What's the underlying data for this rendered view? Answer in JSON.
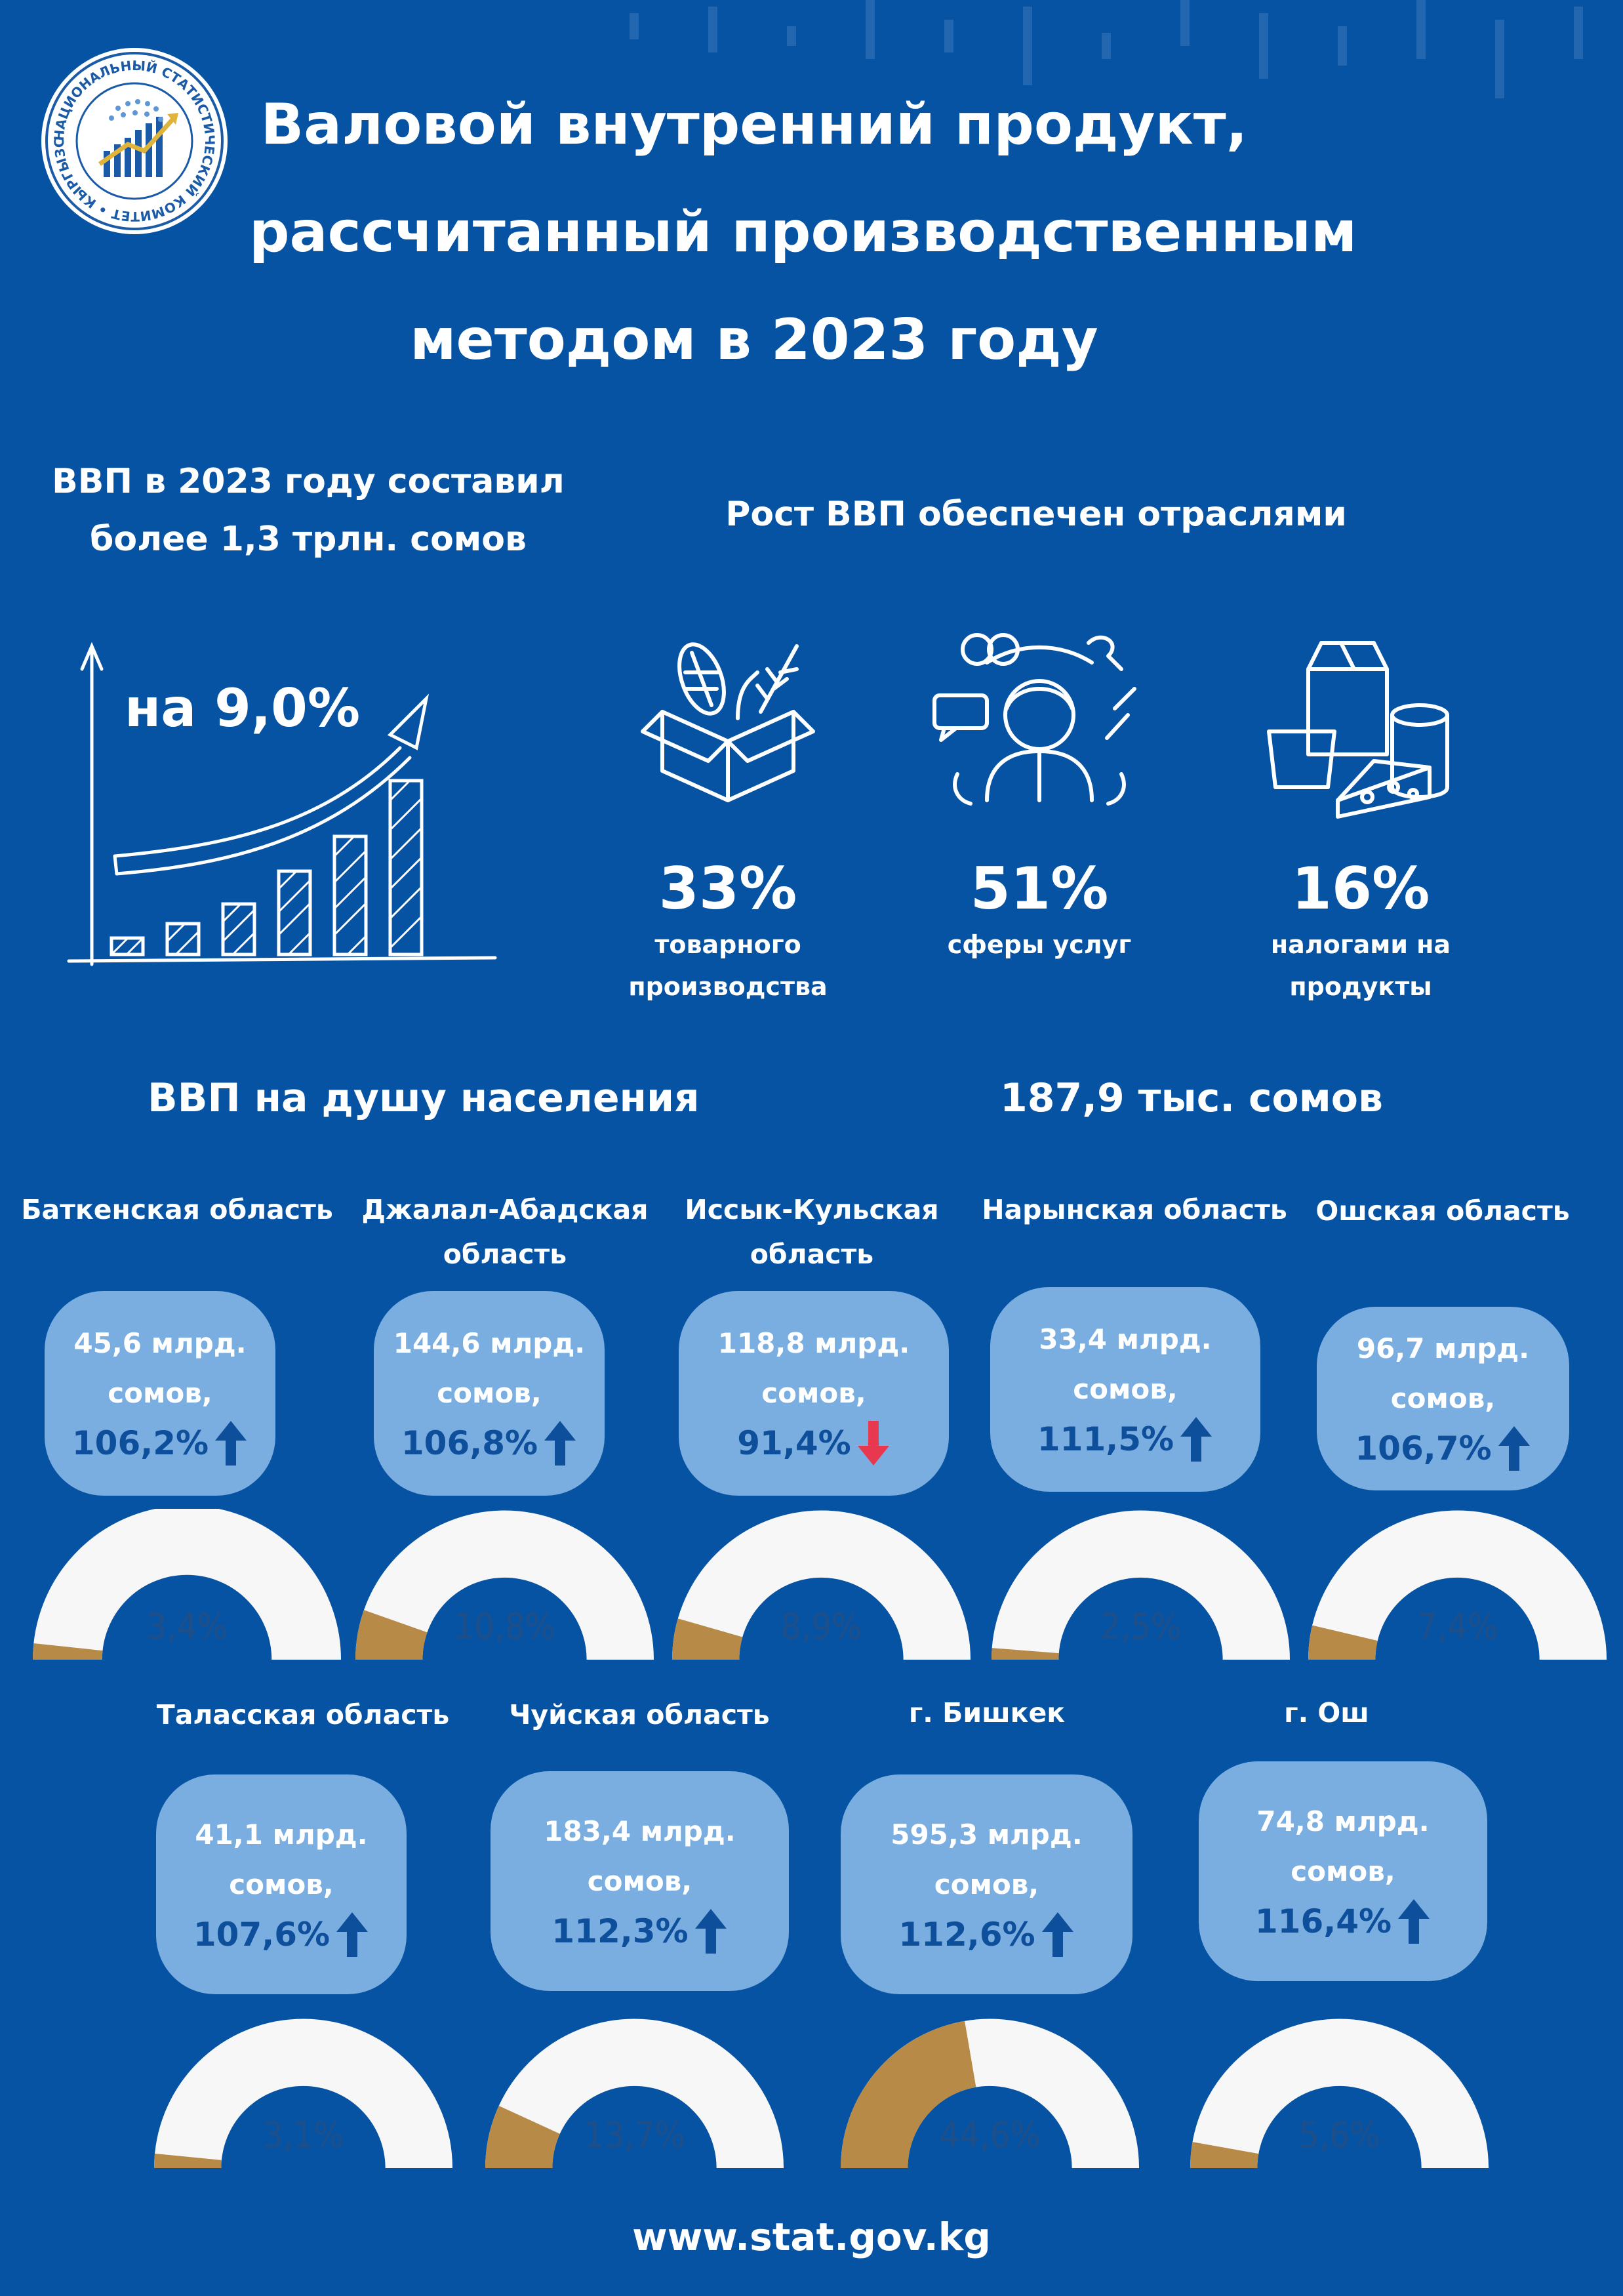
{
  "logo": {
    "ring_text": "НАЦИОНАЛЬНЫЙ СТАТИСТИЧЕСКИЙ КОМИТЕТ • КЫРГЫЗСКАЯ РЕСПУБЛИКА"
  },
  "title_lines": [
    "Валовой внутренний продукт,",
    "рассчитанный производственным",
    "методом в 2023 году"
  ],
  "gdp": {
    "line1": "ВВП в 2023 году составил",
    "line2": "более 1,3 трлн. сомов",
    "growth": "на 9,0%"
  },
  "growth_sectors": {
    "heading": "Рост ВВП обеспечен отраслями",
    "items": [
      {
        "icon": "goods-box-icon",
        "percent": "33%",
        "label_lines": [
          "товарного",
          "производства"
        ],
        "share": 33
      },
      {
        "icon": "services-person-icon",
        "percent": "51%",
        "label_lines": [
          "сферы услуг"
        ],
        "share": 51
      },
      {
        "icon": "food-products-icon",
        "percent": "16%",
        "label_lines": [
          "налогами на продукты"
        ],
        "share": 16
      }
    ]
  },
  "per_capita": {
    "label": "ВВП на душу населения",
    "value": "187,9 тыс. сомов"
  },
  "regions": [
    {
      "name_lines": [
        "Баткенская область"
      ],
      "amount_lines": [
        "45,6 млрд.",
        "сомов,"
      ],
      "growth": "106,2%",
      "trend": "up",
      "share_label": "3,4%",
      "share": 3.4
    },
    {
      "name_lines": [
        "Джалал-Абадская",
        "область"
      ],
      "amount_lines": [
        "144,6 млрд.",
        "сомов,"
      ],
      "growth": "106,8%",
      "trend": "up",
      "share_label": "10,8%",
      "share": 10.8
    },
    {
      "name_lines": [
        "Иссык-Кульская",
        "область"
      ],
      "amount_lines": [
        "118,8 млрд.",
        "сомов,"
      ],
      "growth": "91,4%",
      "trend": "down",
      "share_label": "8,9%",
      "share": 8.9
    },
    {
      "name_lines": [
        "Нарынская область"
      ],
      "amount_lines": [
        "33,4 млрд.",
        "сомов,"
      ],
      "growth": "111,5%",
      "trend": "up",
      "share_label": "2,5%",
      "share": 2.5
    },
    {
      "name_lines": [
        "Ошская область"
      ],
      "amount_lines": [
        "96,7 млрд.",
        "сомов,"
      ],
      "growth": "106,7%",
      "trend": "up",
      "share_label": "7,4%",
      "share": 7.4
    },
    {
      "name_lines": [
        "Таласская область"
      ],
      "amount_lines": [
        "41,1 млрд.",
        "сомов,"
      ],
      "growth": "107,6%",
      "trend": "up",
      "share_label": "3,1%",
      "share": 3.1
    },
    {
      "name_lines": [
        "Чуйская область"
      ],
      "amount_lines": [
        "183,4 млрд.",
        "сомов,"
      ],
      "growth": "112,3%",
      "trend": "up",
      "share_label": "13,7%",
      "share": 13.7
    },
    {
      "name_lines": [
        "г. Бишкек"
      ],
      "amount_lines": [
        "595,3 млрд.",
        "сомов,"
      ],
      "growth": "112,6%",
      "trend": "up",
      "share_label": "44,6%",
      "share": 44.6
    },
    {
      "name_lines": [
        "г. Ош"
      ],
      "amount_lines": [
        "74,8 млрд.",
        "сомов,"
      ],
      "growth": "116,4%",
      "trend": "up",
      "share_label": "5,6%",
      "share": 5.6
    }
  ],
  "colors": {
    "background": "#0753a3",
    "card": "#7baee0",
    "growth_text": "#0e4f9c",
    "arrow_up": "#0e4f9c",
    "arrow_down": "#e8384f",
    "gauge_bg": "#f7f7f7",
    "gauge_fill": "#b88a48",
    "gauge_text": "#1f4f89"
  },
  "footer": {
    "url": "www.stat.gov.kg"
  }
}
